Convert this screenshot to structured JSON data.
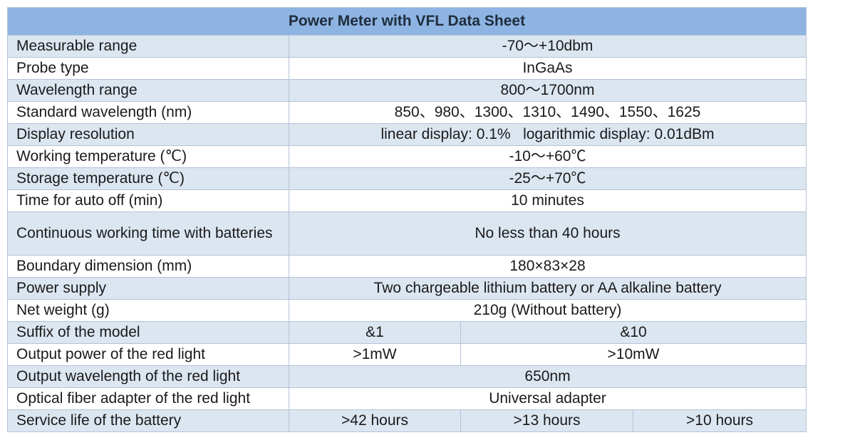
{
  "title": "Power Meter with VFL Data Sheet",
  "rows": [
    {
      "label": "Measurable range",
      "values": [
        "-70～+10dbm"
      ]
    },
    {
      "label": "Probe type",
      "values": [
        "InGaAs"
      ]
    },
    {
      "label": "Wavelength range",
      "values": [
        "800～1700nm"
      ]
    },
    {
      "label": "Standard wavelength (nm)",
      "values": [
        "850、980、1300、1310、1490、1550、1625"
      ]
    },
    {
      "label": "Display resolution",
      "values": [
        "linear display: 0.1%   logarithmic display: 0.01dBm"
      ]
    },
    {
      "label": "Working temperature (℃)",
      "values": [
        "-10～+60℃"
      ]
    },
    {
      "label": "Storage temperature (℃)",
      "values": [
        "-25～+70℃"
      ]
    },
    {
      "label": "Time for auto off (min)",
      "values": [
        "10 minutes"
      ]
    },
    {
      "label": "Continuous working time with batteries",
      "values": [
        "No less than 40 hours"
      ]
    },
    {
      "label": "Boundary dimension (mm)",
      "values": [
        "180×83×28"
      ]
    },
    {
      "label": "Power supply",
      "values": [
        "Two chargeable lithium battery or AA alkaline battery"
      ]
    },
    {
      "label": "Net weight (g)",
      "values": [
        "210g (Without battery)"
      ]
    },
    {
      "label": "Suffix of the model",
      "values": [
        "&1",
        "&10"
      ]
    },
    {
      "label": "Output power of the red light",
      "values": [
        ">1mW",
        ">10mW"
      ]
    },
    {
      "label": "Output wavelength of the red light",
      "values": [
        "650nm"
      ]
    },
    {
      "label": "Optical fiber adapter of the red light",
      "values": [
        "Universal adapter"
      ]
    },
    {
      "label": "Service life of the battery",
      "values": [
        ">42 hours",
        ">13 hours",
        ">10 hours"
      ]
    }
  ]
}
